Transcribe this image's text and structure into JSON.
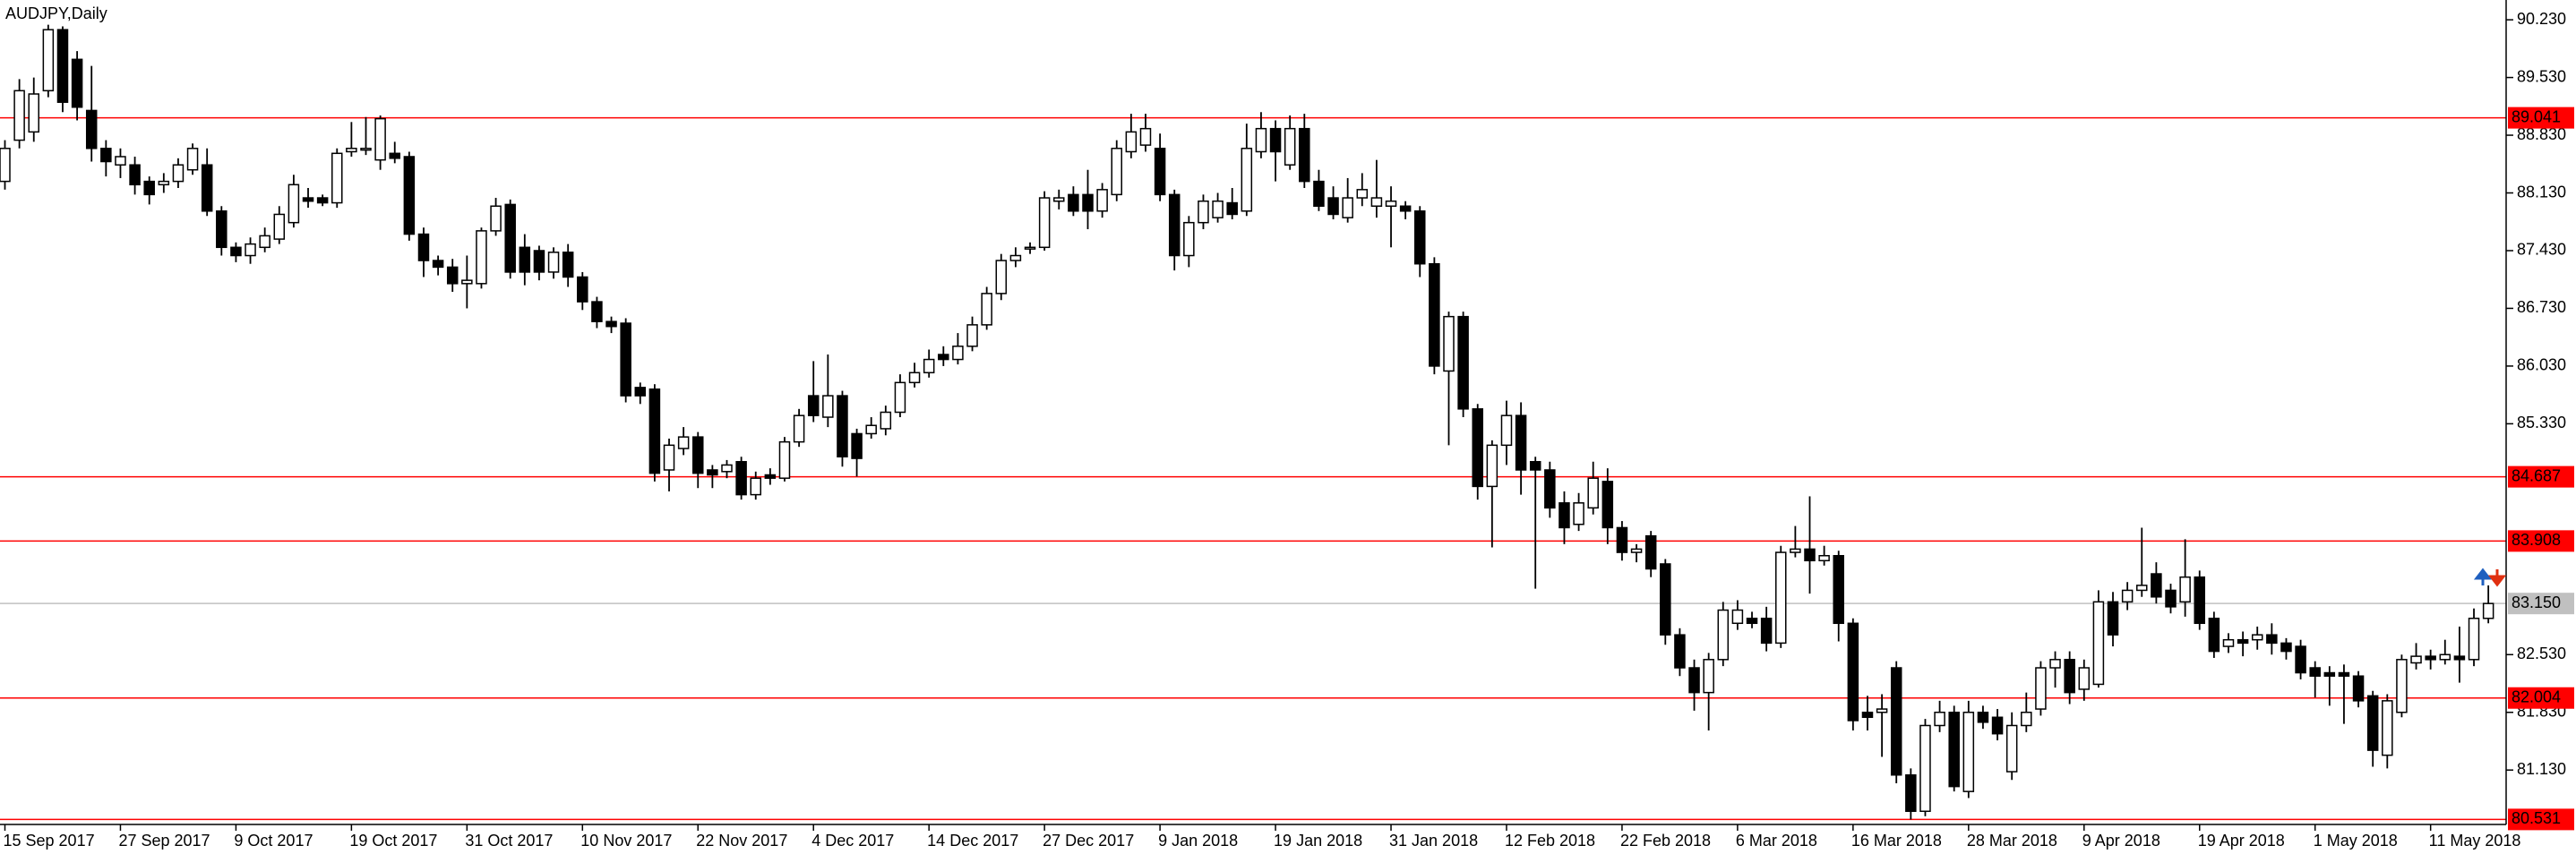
{
  "chart_data": {
    "type": "candlestick",
    "title": "AUDJPY,Daily",
    "up_color": "#ffffff",
    "down_color": "#000000",
    "outline_color": "#000000",
    "ylim": [
      80.47,
      90.47
    ],
    "yticks": [
      {
        "value": 90.23,
        "label": "90.230"
      },
      {
        "value": 89.53,
        "label": "89.530"
      },
      {
        "value": 88.83,
        "label": "88.830"
      },
      {
        "value": 88.13,
        "label": "88.130"
      },
      {
        "value": 87.43,
        "label": "87.430"
      },
      {
        "value": 86.73,
        "label": "86.730"
      },
      {
        "value": 86.03,
        "label": "86.030"
      },
      {
        "value": 85.33,
        "label": "85.330"
      },
      {
        "value": 82.53,
        "label": "82.530"
      },
      {
        "value": 81.83,
        "label": "81.830"
      },
      {
        "value": 81.13,
        "label": "81.130"
      }
    ],
    "levels": [
      89.041,
      84.687,
      83.908,
      82.004,
      80.531
    ],
    "level_color": "#ff0000",
    "current_price": {
      "value": 83.15,
      "label": "83.150"
    },
    "current_color": "#c0c0c0",
    "categories": [
      "15 Sep 2017",
      null,
      null,
      null,
      null,
      null,
      null,
      null,
      "27 Sep 2017",
      null,
      null,
      null,
      null,
      null,
      null,
      null,
      "9 Oct 2017",
      null,
      null,
      null,
      null,
      null,
      null,
      null,
      "19 Oct 2017",
      null,
      null,
      null,
      null,
      null,
      null,
      null,
      "31 Oct 2017",
      null,
      null,
      null,
      null,
      null,
      null,
      null,
      "10 Nov 2017",
      null,
      null,
      null,
      null,
      null,
      null,
      null,
      "22 Nov 2017",
      null,
      null,
      null,
      null,
      null,
      null,
      null,
      "4 Dec 2017",
      null,
      null,
      null,
      null,
      null,
      null,
      null,
      "14 Dec 2017",
      null,
      null,
      null,
      null,
      null,
      null,
      null,
      "27 Dec 2017",
      null,
      null,
      null,
      null,
      null,
      null,
      null,
      "9 Jan 2018",
      null,
      null,
      null,
      null,
      null,
      null,
      null,
      "19 Jan 2018",
      null,
      null,
      null,
      null,
      null,
      null,
      null,
      "31 Jan 2018",
      null,
      null,
      null,
      null,
      null,
      null,
      null,
      "12 Feb 2018",
      null,
      null,
      null,
      null,
      null,
      null,
      null,
      "22 Feb 2018",
      null,
      null,
      null,
      null,
      null,
      null,
      null,
      "6 Mar 2018",
      null,
      null,
      null,
      null,
      null,
      null,
      null,
      "16 Mar 2018",
      null,
      null,
      null,
      null,
      null,
      null,
      null,
      "28 Mar 2018",
      null,
      null,
      null,
      null,
      null,
      null,
      null,
      "9 Apr 2018",
      null,
      null,
      null,
      null,
      null,
      null,
      null,
      "19 Apr 2018",
      null,
      null,
      null,
      null,
      null,
      null,
      null,
      "1 May 2018",
      null,
      null,
      null,
      null,
      null,
      null,
      null,
      "11 May 2018",
      null,
      null,
      null,
      null
    ],
    "open": [
      88.27,
      88.77,
      88.87,
      89.37,
      90.11,
      89.75,
      89.13,
      88.67,
      88.47,
      88.47,
      88.27,
      88.23,
      88.27,
      88.41,
      88.47,
      87.91,
      87.47,
      87.37,
      87.47,
      87.57,
      87.77,
      88.07,
      88.07,
      88.01,
      88.63,
      88.65,
      88.53,
      88.61,
      88.57,
      87.63,
      87.31,
      87.23,
      87.03,
      87.03,
      87.67,
      87.99,
      87.47,
      87.43,
      87.17,
      87.41,
      87.11,
      86.81,
      86.57,
      86.55,
      85.77,
      85.75,
      84.77,
      85.03,
      85.17,
      84.77,
      84.75,
      84.87,
      84.47,
      84.71,
      84.67,
      85.11,
      85.67,
      85.41,
      85.67,
      85.21,
      85.21,
      85.27,
      85.47,
      85.83,
      85.95,
      86.17,
      86.11,
      86.27,
      86.53,
      86.91,
      87.31,
      87.45,
      87.47,
      88.03,
      88.11,
      88.11,
      87.91,
      88.11,
      88.63,
      88.71,
      88.67,
      88.11,
      87.37,
      87.77,
      87.83,
      88.01,
      87.91,
      88.63,
      88.91,
      88.47,
      88.91,
      88.27,
      88.07,
      87.83,
      88.07,
      87.97,
      87.97,
      87.97,
      87.91,
      87.27,
      85.97,
      86.63,
      85.51,
      84.57,
      85.07,
      85.43,
      84.87,
      84.77,
      84.37,
      84.11,
      84.31,
      84.63,
      84.07,
      83.77,
      83.97,
      83.63,
      82.77,
      82.37,
      82.07,
      82.47,
      82.91,
      82.97,
      82.97,
      82.67,
      83.77,
      83.81,
      83.67,
      83.73,
      82.91,
      81.83,
      81.83,
      82.37,
      81.07,
      80.63,
      81.67,
      81.83,
      80.87,
      81.83,
      81.77,
      81.11,
      81.67,
      81.87,
      82.37,
      82.47,
      82.11,
      82.17,
      83.17,
      83.17,
      83.31,
      83.51,
      83.31,
      83.17,
      83.47,
      82.97,
      82.63,
      82.71,
      82.71,
      82.77,
      82.67,
      82.63,
      82.37,
      82.31,
      82.31,
      82.27,
      82.03,
      81.31,
      81.83,
      82.43,
      82.51,
      82.47,
      82.51,
      82.47,
      82.97
    ],
    "high": [
      88.77,
      89.51,
      89.53,
      90.17,
      90.15,
      89.85,
      89.67,
      88.77,
      88.67,
      88.57,
      88.33,
      88.37,
      88.55,
      88.73,
      88.67,
      87.97,
      87.53,
      87.59,
      87.71,
      87.97,
      88.35,
      88.19,
      88.11,
      88.67,
      88.99,
      89.05,
      89.07,
      88.75,
      88.63,
      87.71,
      87.37,
      87.33,
      87.37,
      87.71,
      88.07,
      88.05,
      87.63,
      87.49,
      87.47,
      87.51,
      87.17,
      86.87,
      86.63,
      86.61,
      85.83,
      85.81,
      85.15,
      85.29,
      85.23,
      84.83,
      84.89,
      84.93,
      84.75,
      84.79,
      85.17,
      85.51,
      86.09,
      86.17,
      85.73,
      85.27,
      85.41,
      85.55,
      85.93,
      86.07,
      86.23,
      86.27,
      86.43,
      86.63,
      86.99,
      87.39,
      87.47,
      87.53,
      88.15,
      88.17,
      88.21,
      88.41,
      88.25,
      88.77,
      89.09,
      89.09,
      88.85,
      88.17,
      87.85,
      88.11,
      88.13,
      88.19,
      88.97,
      89.11,
      89.01,
      89.07,
      89.09,
      88.41,
      88.21,
      88.31,
      88.37,
      88.53,
      88.21,
      88.03,
      87.97,
      87.35,
      86.69,
      86.69,
      85.57,
      85.13,
      85.61,
      85.59,
      84.93,
      84.87,
      84.51,
      84.49,
      84.87,
      84.79,
      84.15,
      83.87,
      84.03,
      83.69,
      82.85,
      82.47,
      82.55,
      83.17,
      83.19,
      83.05,
      83.11,
      83.85,
      84.09,
      84.45,
      83.85,
      83.79,
      82.97,
      82.03,
      82.05,
      82.45,
      81.15,
      81.75,
      81.97,
      81.91,
      81.97,
      81.91,
      81.87,
      81.83,
      82.07,
      82.45,
      82.57,
      82.57,
      82.47,
      83.31,
      83.29,
      83.41,
      84.07,
      83.65,
      83.39,
      83.93,
      83.55,
      83.05,
      82.79,
      82.81,
      82.87,
      82.91,
      82.73,
      82.71,
      82.45,
      82.39,
      82.41,
      82.33,
      82.09,
      82.05,
      82.53,
      82.67,
      82.59,
      82.71,
      82.87,
      83.09,
      83.37
    ],
    "low": [
      88.17,
      88.67,
      88.75,
      89.29,
      89.11,
      89.01,
      88.51,
      88.33,
      88.31,
      88.11,
      87.99,
      88.13,
      88.19,
      88.35,
      87.85,
      87.37,
      87.29,
      87.27,
      87.41,
      87.51,
      87.71,
      87.95,
      87.97,
      87.95,
      88.57,
      88.59,
      88.41,
      88.49,
      87.55,
      87.11,
      87.13,
      86.93,
      86.73,
      86.97,
      87.61,
      87.09,
      87.01,
      87.07,
      87.09,
      86.99,
      86.71,
      86.49,
      86.43,
      85.59,
      85.57,
      84.63,
      84.51,
      84.95,
      84.55,
      84.55,
      84.67,
      84.41,
      84.41,
      84.59,
      84.63,
      85.05,
      85.35,
      85.29,
      84.81,
      84.69,
      85.15,
      85.19,
      85.41,
      85.77,
      85.89,
      86.03,
      86.05,
      86.21,
      86.47,
      86.83,
      87.23,
      87.39,
      87.43,
      87.93,
      87.85,
      87.69,
      87.83,
      88.03,
      88.55,
      88.63,
      88.03,
      87.19,
      87.23,
      87.69,
      87.77,
      87.81,
      87.85,
      88.55,
      88.27,
      88.41,
      88.19,
      87.91,
      87.81,
      87.77,
      87.97,
      87.83,
      87.47,
      87.81,
      87.11,
      85.93,
      85.07,
      85.41,
      84.41,
      83.83,
      84.83,
      84.47,
      83.33,
      84.19,
      83.87,
      84.03,
      84.23,
      83.87,
      83.67,
      83.65,
      83.47,
      82.65,
      82.27,
      81.85,
      81.61,
      82.39,
      82.83,
      82.85,
      82.57,
      82.61,
      83.71,
      83.27,
      83.61,
      82.69,
      81.61,
      81.61,
      81.29,
      80.97,
      80.53,
      80.57,
      81.59,
      80.87,
      80.79,
      81.63,
      81.49,
      81.01,
      81.59,
      81.79,
      82.13,
      81.93,
      81.97,
      82.13,
      82.63,
      83.07,
      83.23,
      83.15,
      83.03,
      82.99,
      82.83,
      82.49,
      82.55,
      82.51,
      82.59,
      82.53,
      82.47,
      82.23,
      82.01,
      81.91,
      81.69,
      81.89,
      81.17,
      81.15,
      81.77,
      82.35,
      82.35,
      82.41,
      82.19,
      82.39,
      82.91
    ],
    "close": [
      88.67,
      89.37,
      89.33,
      90.11,
      89.23,
      89.17,
      88.67,
      88.51,
      88.57,
      88.23,
      88.11,
      88.27,
      88.47,
      88.67,
      87.91,
      87.47,
      87.37,
      87.51,
      87.61,
      87.87,
      88.23,
      88.03,
      88.01,
      88.61,
      88.67,
      88.67,
      89.03,
      88.55,
      87.63,
      87.31,
      87.23,
      87.03,
      87.07,
      87.67,
      87.97,
      87.17,
      87.17,
      87.17,
      87.41,
      87.11,
      86.81,
      86.57,
      86.51,
      85.67,
      85.67,
      84.73,
      85.07,
      85.17,
      84.73,
      84.71,
      84.83,
      84.47,
      84.67,
      84.67,
      85.11,
      85.43,
      85.43,
      85.67,
      84.93,
      84.91,
      85.31,
      85.47,
      85.83,
      85.95,
      86.11,
      86.11,
      86.27,
      86.53,
      86.91,
      87.31,
      87.37,
      87.47,
      88.07,
      88.07,
      87.91,
      87.91,
      88.17,
      88.67,
      88.87,
      88.91,
      88.11,
      87.37,
      87.77,
      88.03,
      88.03,
      87.87,
      88.67,
      88.91,
      88.63,
      88.91,
      88.27,
      87.97,
      87.87,
      88.07,
      88.17,
      88.07,
      88.03,
      87.91,
      87.27,
      86.03,
      86.63,
      85.51,
      84.57,
      85.07,
      85.43,
      84.77,
      84.77,
      84.31,
      84.07,
      84.37,
      84.67,
      84.07,
      83.77,
      83.81,
      83.57,
      82.77,
      82.37,
      82.07,
      82.47,
      83.07,
      83.07,
      82.91,
      82.67,
      83.77,
      83.81,
      83.67,
      83.73,
      82.91,
      81.73,
      81.77,
      81.87,
      81.07,
      80.63,
      81.67,
      81.83,
      80.93,
      81.83,
      81.71,
      81.57,
      81.67,
      81.83,
      82.37,
      82.47,
      82.07,
      82.37,
      83.17,
      82.77,
      83.31,
      83.37,
      83.23,
      83.11,
      83.47,
      82.91,
      82.57,
      82.71,
      82.67,
      82.77,
      82.67,
      82.57,
      82.31,
      82.27,
      82.27,
      82.27,
      81.97,
      81.37,
      81.97,
      82.47,
      82.51,
      82.47,
      82.53,
      82.47,
      82.97,
      83.15
    ]
  }
}
